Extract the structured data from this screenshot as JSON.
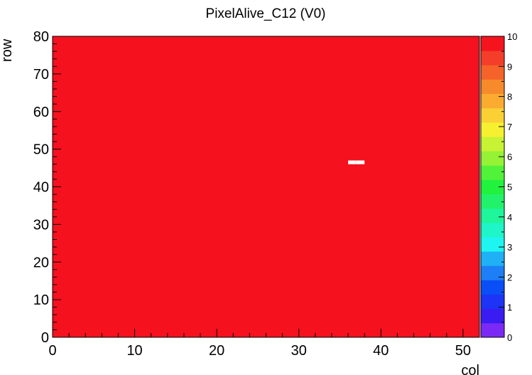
{
  "chart_data": {
    "type": "heatmap",
    "title": "PixelAlive_C12 (V0)",
    "xlabel": "col",
    "ylabel": "row",
    "xlim": [
      0,
      52
    ],
    "ylim": [
      0,
      80
    ],
    "zlim": [
      0,
      10
    ],
    "x_ticks": [
      "0",
      "10",
      "20",
      "30",
      "40",
      "50"
    ],
    "y_ticks": [
      "0",
      "10",
      "20",
      "30",
      "40",
      "50",
      "60",
      "70",
      "80"
    ],
    "z_ticks": [
      "0",
      "1",
      "2",
      "3",
      "4",
      "5",
      "6",
      "7",
      "8",
      "9",
      "10"
    ],
    "fill_value": 10,
    "cells": [
      {
        "col": 36,
        "row": 46,
        "value": 0
      },
      {
        "col": 37,
        "row": 46,
        "value": 0
      }
    ],
    "palette": [
      "#7b2af5",
      "#3a1cf2",
      "#1d33f5",
      "#0a4ef7",
      "#1d7ef5",
      "#1fb0f5",
      "#1ef5f0",
      "#1ef5c8",
      "#1ff59a",
      "#22f26b",
      "#20f23d",
      "#52f23a",
      "#95f235",
      "#c8f234",
      "#f6f030",
      "#fad035",
      "#fbac30",
      "#f78a2a",
      "#f5632b",
      "#f43e2a",
      "#f5141e"
    ],
    "colors": {
      "fill": "#f5111e",
      "empty": "#ffffff"
    }
  }
}
